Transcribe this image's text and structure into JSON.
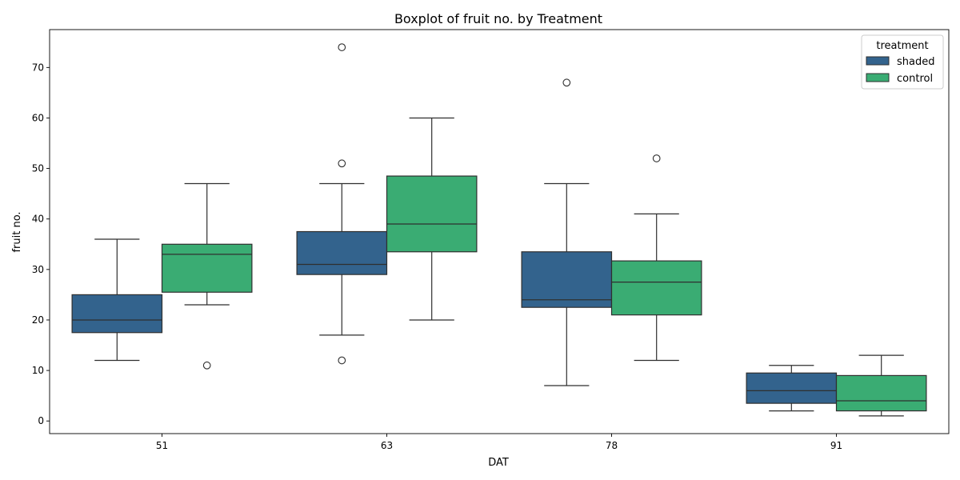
{
  "chart_data": {
    "type": "box",
    "title": "Boxplot of fruit no. by Treatment",
    "xlabel": "DAT",
    "ylabel": "fruit no.",
    "ylim": [
      -2.5,
      77.5
    ],
    "yticks": [
      0,
      10,
      20,
      30,
      40,
      50,
      60,
      70
    ],
    "categories": [
      "51",
      "63",
      "78",
      "91"
    ],
    "legend": {
      "title": "treatment",
      "placement": "top-right"
    },
    "grid": false,
    "series": [
      {
        "name": "shaded",
        "color": "#33638d",
        "boxes": [
          {
            "whisker_low": 12,
            "q1": 17.5,
            "median": 20,
            "q3": 25,
            "whisker_high": 36,
            "outliers": []
          },
          {
            "whisker_low": 17,
            "q1": 29,
            "median": 31,
            "q3": 37.5,
            "whisker_high": 47,
            "outliers": [
              12,
              51,
              74
            ]
          },
          {
            "whisker_low": 7,
            "q1": 22.5,
            "median": 24,
            "q3": 33.5,
            "whisker_high": 47,
            "outliers": [
              67
            ]
          },
          {
            "whisker_low": 2,
            "q1": 3.5,
            "median": 6,
            "q3": 9.5,
            "whisker_high": 11,
            "outliers": []
          }
        ]
      },
      {
        "name": "control",
        "color": "#3aac73",
        "boxes": [
          {
            "whisker_low": 23,
            "q1": 25.5,
            "median": 33,
            "q3": 35,
            "whisker_high": 47,
            "outliers": [
              11
            ]
          },
          {
            "whisker_low": 20,
            "q1": 33.5,
            "median": 39,
            "q3": 48.5,
            "whisker_high": 60,
            "outliers": []
          },
          {
            "whisker_low": 12,
            "q1": 21,
            "median": 27.5,
            "q3": 31.7,
            "whisker_high": 41,
            "outliers": [
              52
            ]
          },
          {
            "whisker_low": 1,
            "q1": 2,
            "median": 4,
            "q3": 9,
            "whisker_high": 13,
            "outliers": []
          }
        ]
      }
    ]
  }
}
